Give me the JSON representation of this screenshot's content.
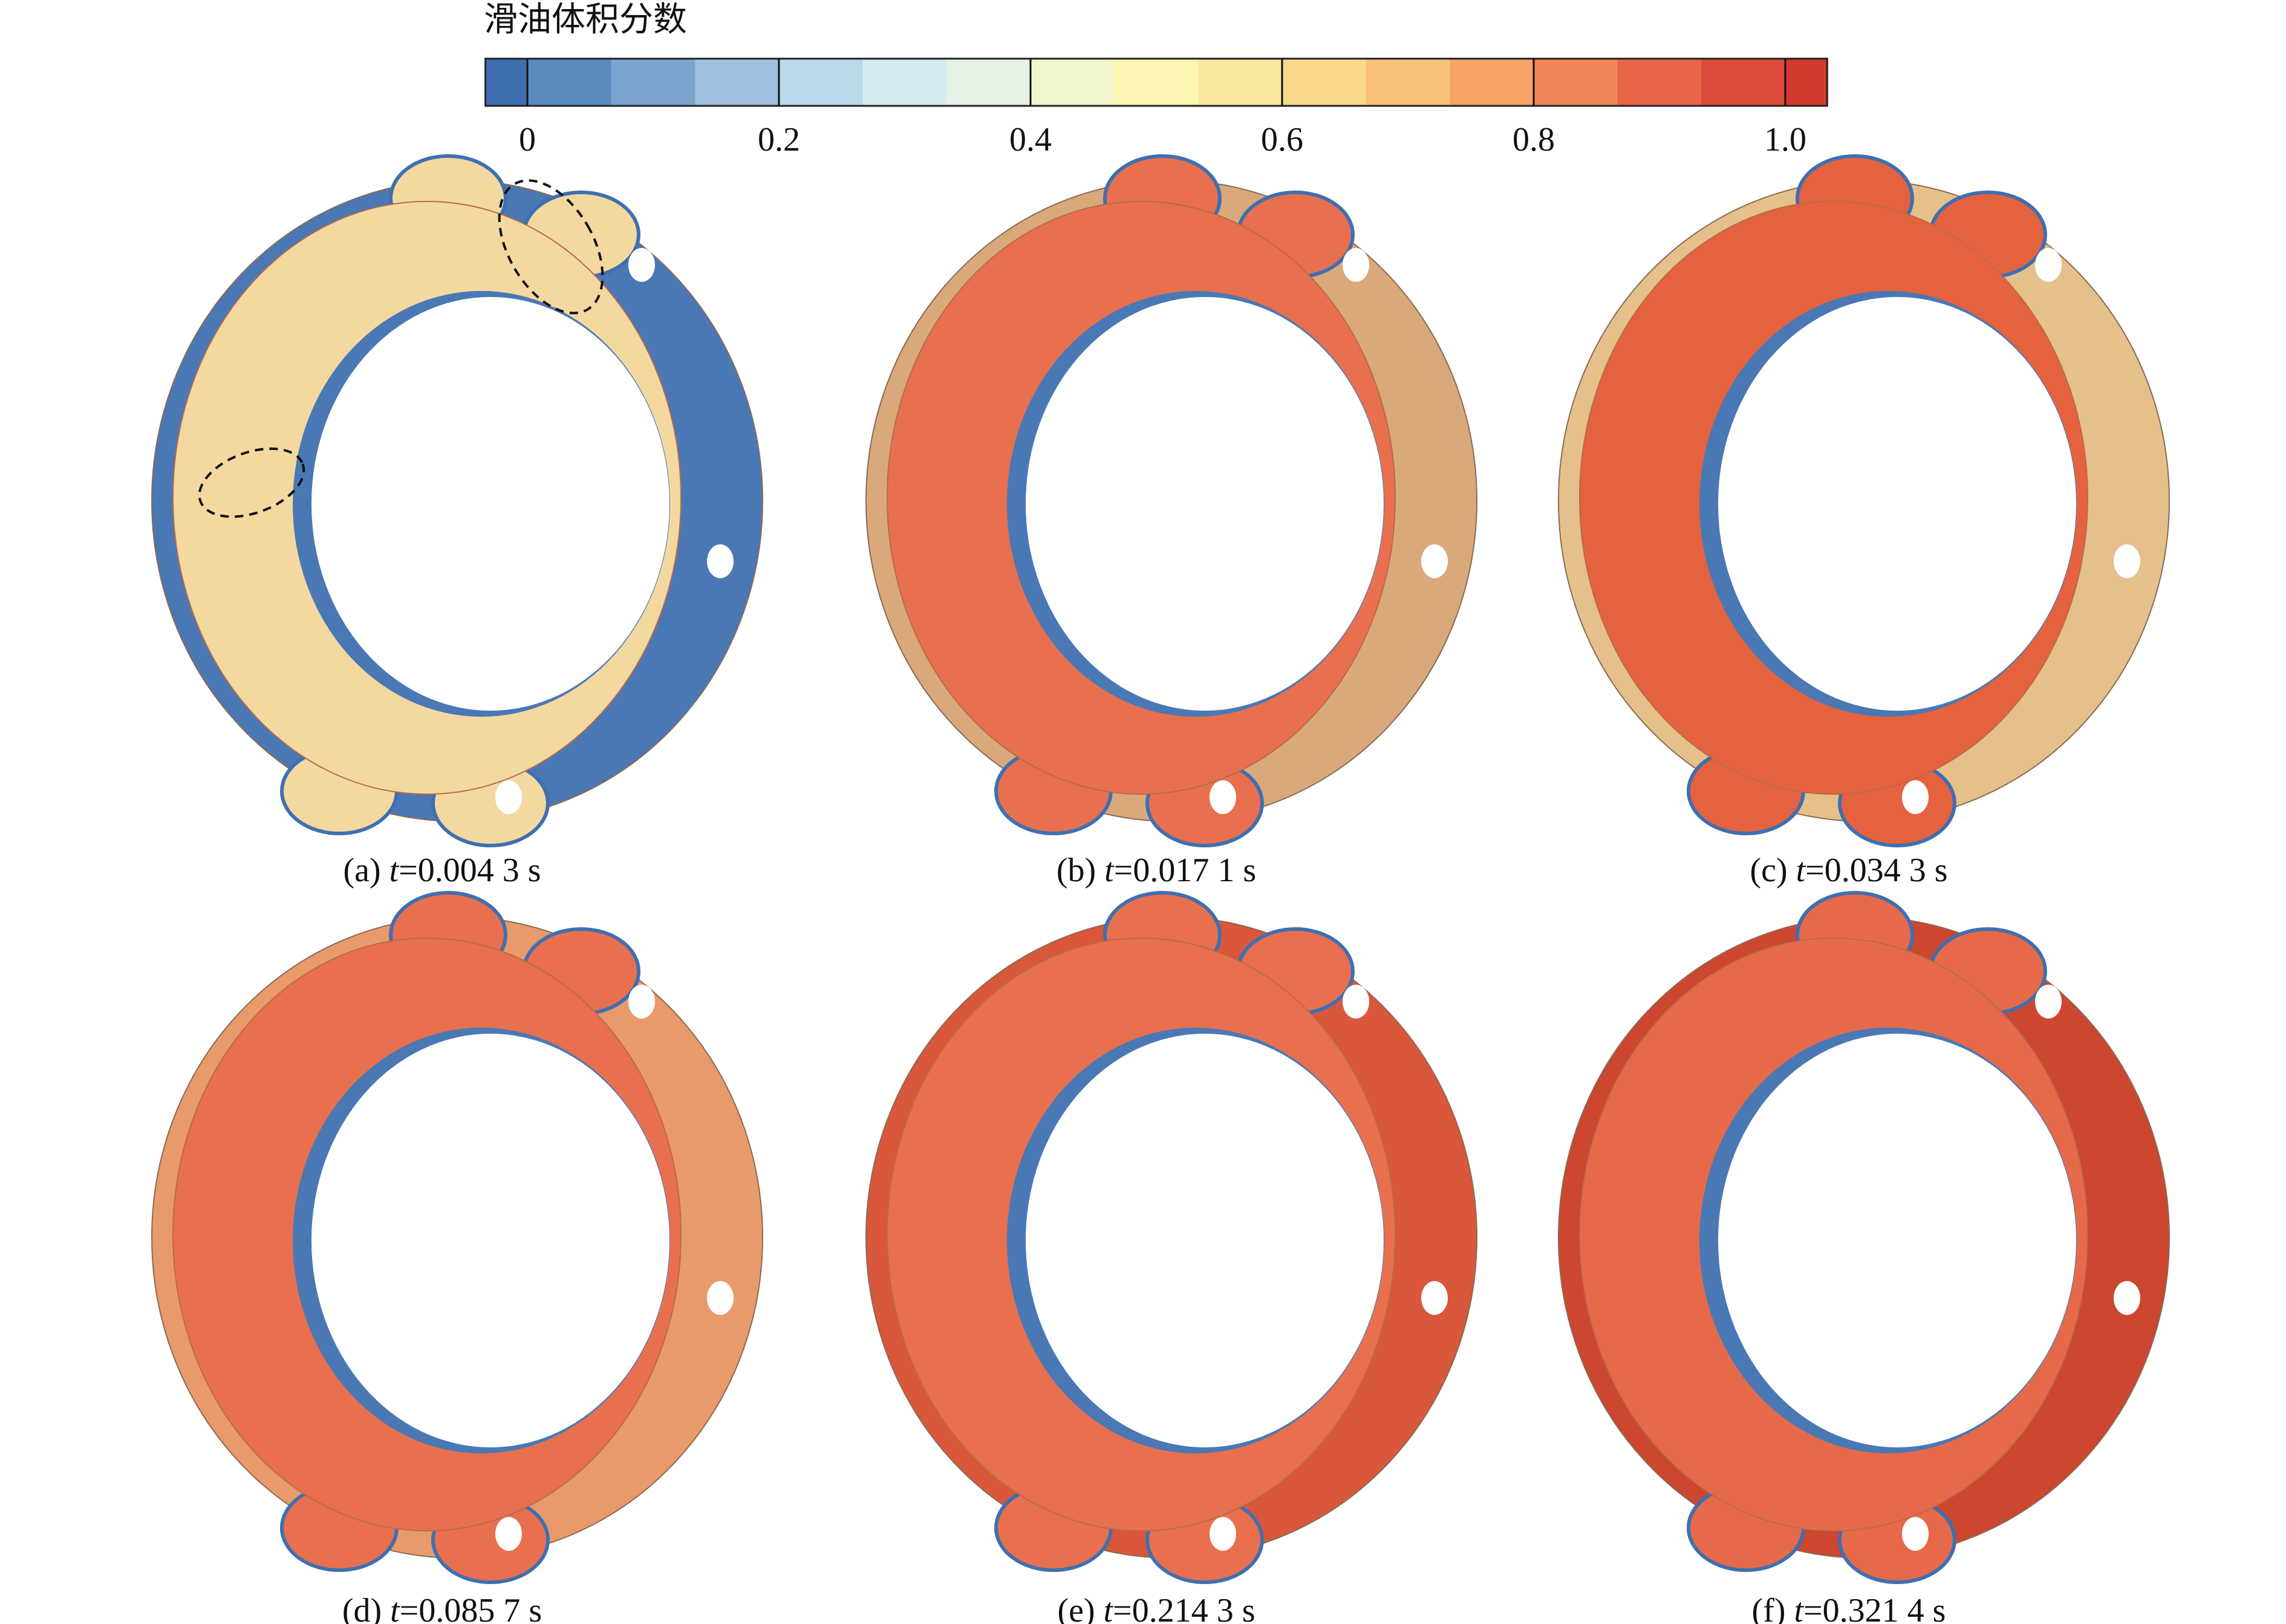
{
  "colorbar": {
    "title": "滑油体积分数",
    "colors": [
      "#3f6fb0",
      "#5b8ac0",
      "#7ba4cf",
      "#9cc0dd",
      "#bad9ea",
      "#d6ecf2",
      "#e6f2e4",
      "#f0f5cc",
      "#fbf5b2",
      "#fce9a0",
      "#fbd98c",
      "#f9c27a",
      "#f6a468",
      "#f08558",
      "#e86548",
      "#dd4a3a",
      "#d33a2f"
    ],
    "lim": [
      0,
      1
    ],
    "ticks": [
      0,
      0.2,
      0.4,
      0.6,
      0.8,
      {
        "value": 1,
        "label": "1.0"
      }
    ]
  },
  "panels": [
    {
      "label": "(a)",
      "var": "t",
      "time": "=0.004 3 s",
      "outer_color": "#4a78b4",
      "face_color": "#f3d9a0"
    },
    {
      "label": "(b)",
      "var": "t",
      "time": "=0.017 1 s",
      "outer_color": "#d9a97c",
      "face_color": "#e8704f"
    },
    {
      "label": "(c)",
      "var": "t",
      "time": "=0.034 3 s",
      "outer_color": "#e5c08a",
      "face_color": "#e5623f"
    },
    {
      "label": "(d)",
      "var": "t",
      "time": "=0.085 7 s",
      "outer_color": "#e89a6a",
      "face_color": "#e8704f"
    },
    {
      "label": "(e)",
      "var": "t",
      "time": "=0.214 3 s",
      "outer_color": "#d9573a",
      "face_color": "#e8704f"
    },
    {
      "label": "(f)",
      "var": "t",
      "time": "=0.321 4 s",
      "outer_color": "#cc4630",
      "face_color": "#e66a4a"
    }
  ]
}
